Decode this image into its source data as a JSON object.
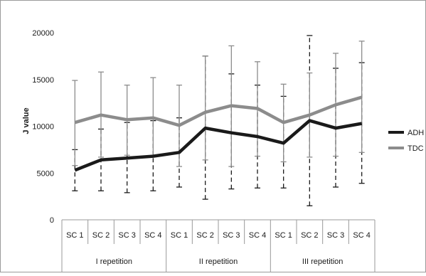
{
  "chart_data": {
    "type": "line",
    "ylabel": "J value",
    "ylim": [
      0,
      20000
    ],
    "yticks": [
      0,
      5000,
      10000,
      15000,
      20000
    ],
    "categories": [
      "SC 1",
      "SC 2",
      "SC 3",
      "SC 4",
      "SC 1",
      "SC 2",
      "SC 3",
      "SC 4",
      "SC 1",
      "SC 2",
      "SC 3",
      "SC 4"
    ],
    "groups": [
      {
        "label": "I repetition",
        "span": 4
      },
      {
        "label": "II repetition",
        "span": 4
      },
      {
        "label": "III repetition",
        "span": 4
      }
    ],
    "legend_position": "right",
    "series": [
      {
        "name": "ADH",
        "color": "#1a1a1a",
        "values": [
          5300,
          6400,
          6600,
          6800,
          7200,
          9800,
          9300,
          8900,
          8200,
          10600,
          9800,
          10300
        ],
        "error_low": [
          3100,
          3100,
          2900,
          3100,
          3500,
          2200,
          3300,
          3400,
          3400,
          1500,
          3500,
          3900
        ],
        "error_high": [
          7500,
          9700,
          10400,
          10600,
          10900,
          17500,
          15600,
          14400,
          13200,
          19700,
          16200,
          16800
        ],
        "error_style": "dashed"
      },
      {
        "name": "TDC",
        "color": "#8c8c8c",
        "values": [
          10400,
          11200,
          10700,
          10900,
          10100,
          11500,
          12200,
          11900,
          10400,
          11200,
          12300,
          13100
        ],
        "error_low": [
          5800,
          6700,
          6900,
          6800,
          5700,
          6400,
          5700,
          6800,
          6200,
          6700,
          6800,
          7200
        ],
        "error_high": [
          14900,
          15800,
          14400,
          15200,
          14400,
          17500,
          18600,
          16900,
          14500,
          15700,
          17800,
          19100
        ],
        "error_style": "solid"
      }
    ]
  }
}
